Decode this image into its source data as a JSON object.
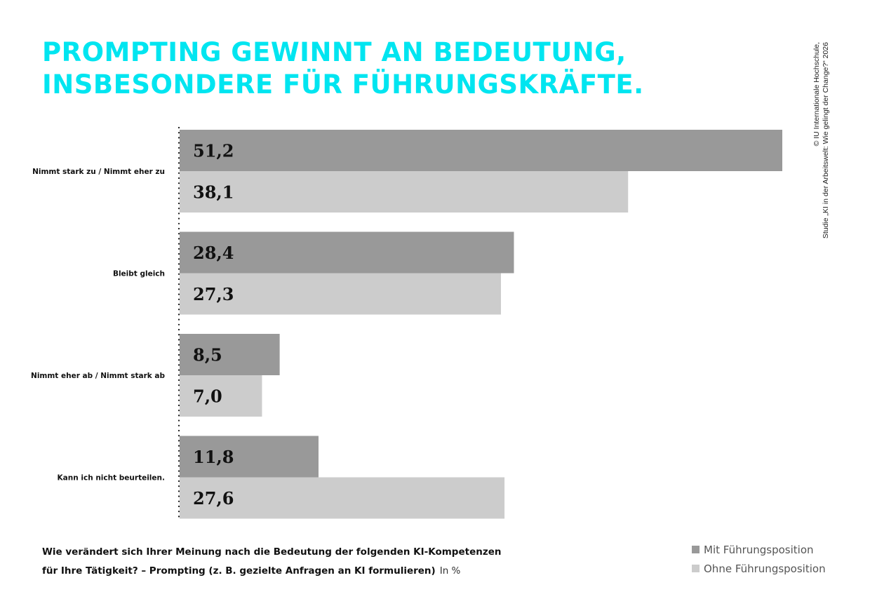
{
  "title": {
    "line1": "PROMPTING GEWINNT AN BEDEUTUNG,",
    "line2": "INSBESONDERE FÜR FÜHRUNGSKRÄFTE."
  },
  "copyright": {
    "line1": "© IU Internationale Hochschule,",
    "line2": "Studie „KI in der Arbeitswelt: Wie gelingt der Change?“ 2026"
  },
  "question": {
    "line1": "Wie verändert sich Ihrer Meinung nach die Bedeutung der folgenden KI-Kompetenzen",
    "line2": "für Ihre Tätigkeit? – Prompting (z. B. gezielte Anfragen an KI formulieren)",
    "unit": "In %"
  },
  "colors": {
    "accent": "#00e5f0",
    "series_with": "#999999",
    "series_without": "#cccccc"
  },
  "chart_data": {
    "type": "bar",
    "orientation": "horizontal",
    "categories": [
      "Nimmt stark zu / Nimmt eher zu",
      "Bleibt gleich",
      "Nimmt eher ab / Nimmt stark ab",
      "Kann ich nicht beurteilen."
    ],
    "series": [
      {
        "name": "Mit Führungsposition",
        "color": "#999999",
        "values": [
          51.2,
          28.4,
          8.5,
          11.8
        ]
      },
      {
        "name": "Ohne Führungsposition",
        "color": "#cccccc",
        "values": [
          38.1,
          27.3,
          7.0,
          27.6
        ]
      }
    ],
    "value_labels": [
      [
        "51,2",
        "28,4",
        "8,5",
        "11,8"
      ],
      [
        "38,1",
        "27,3",
        "7,0",
        "27,6"
      ]
    ],
    "xlim": [
      0,
      51.2
    ],
    "grid": false,
    "legend": "bottom-right"
  }
}
